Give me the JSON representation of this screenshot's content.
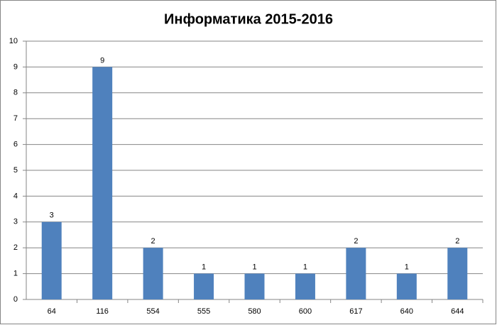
{
  "chart_data": {
    "type": "bar",
    "title": "Информатика 2015-2016",
    "categories": [
      "64",
      "116",
      "554",
      "555",
      "580",
      "600",
      "617",
      "640",
      "644"
    ],
    "values": [
      3,
      9,
      2,
      1,
      1,
      1,
      2,
      1,
      2
    ],
    "color": "#4f81bd",
    "ylim": [
      0,
      10
    ],
    "yticks": [
      0,
      1,
      2,
      3,
      4,
      5,
      6,
      7,
      8,
      9,
      10
    ],
    "grid": true
  }
}
